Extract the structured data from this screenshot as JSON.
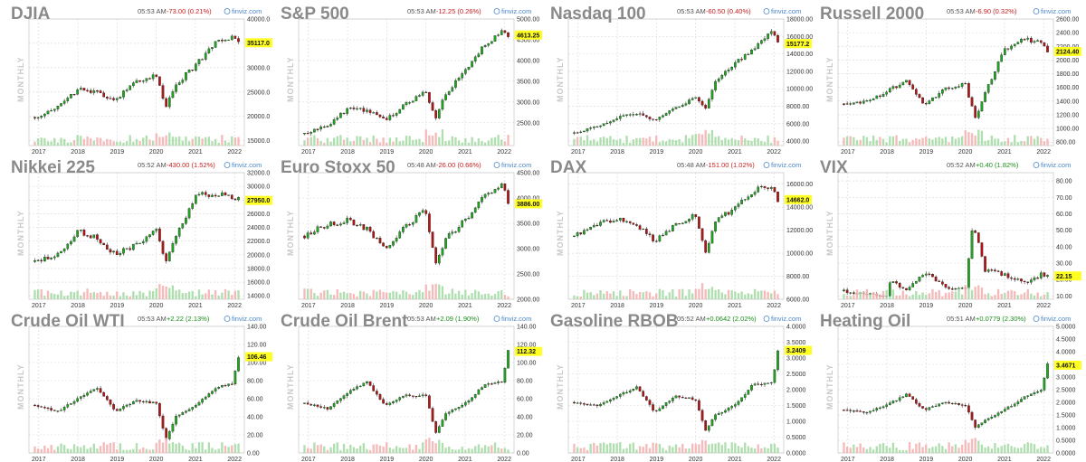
{
  "colors": {
    "up": "#1fa51f",
    "down": "#b31515",
    "vol_up": "#a6dba6",
    "vol_down": "#f4b3b3",
    "highlight": "#ffff22",
    "grid": "#d9d9d9"
  },
  "period_label": "MONTHLY",
  "brand": "finviz.com",
  "brand_icon": "finviz-logo-icon",
  "x_labels": [
    "2017",
    "2018",
    "2019",
    "2020",
    "2021",
    "2022"
  ],
  "chart_data": [
    {
      "type": "candlestick",
      "ticker": "DJIA",
      "time": "05:53 AM",
      "change": "-73.00 (0.21%)",
      "direction": "down",
      "last": "35117.0",
      "last_value": 35117,
      "ylim": [
        14000,
        40000
      ],
      "y_ticks": [
        "40000.0",
        "35000.0",
        "30000.0",
        "25000.0",
        "20000.0",
        "15000.0"
      ],
      "y_tick_values": [
        40000,
        35000,
        30000,
        25000,
        20000,
        15000
      ],
      "series": [
        {
          "name": "close",
          "x": [
            2016.9,
            2017.5,
            2018.0,
            2018.5,
            2018.95,
            2019.5,
            2020.0,
            2020.25,
            2020.5,
            2021.0,
            2021.5,
            2021.95,
            2022.1
          ],
          "values": [
            19800,
            21800,
            25500,
            24800,
            23500,
            27000,
            28500,
            21900,
            26500,
            30500,
            34800,
            36300,
            35117
          ]
        }
      ]
    },
    {
      "type": "candlestick",
      "ticker": "S&P 500",
      "time": "05:53 AM",
      "change": "-12.25 (0.26%)",
      "direction": "down",
      "last": "4613.25",
      "last_value": 4613,
      "ylim": [
        1950,
        5000
      ],
      "y_ticks": [
        "5000.00",
        "4500.00",
        "4000.00",
        "3500.00",
        "3000.00",
        "2500.00"
      ],
      "y_tick_values": [
        5000,
        4500,
        4000,
        3500,
        3000,
        2500
      ],
      "series": [
        {
          "name": "close",
          "x": [
            2016.9,
            2017.5,
            2018.0,
            2018.5,
            2018.95,
            2019.5,
            2020.0,
            2020.25,
            2020.5,
            2021.0,
            2021.5,
            2021.95,
            2022.1
          ],
          "values": [
            2240,
            2450,
            2820,
            2800,
            2550,
            2950,
            3250,
            2600,
            3200,
            3750,
            4350,
            4770,
            4613
          ]
        }
      ]
    },
    {
      "type": "candlestick",
      "ticker": "Nasdaq 100",
      "time": "05:53 AM",
      "change": "-60.50 (0.40%)",
      "direction": "down",
      "last": "15177.2",
      "last_value": 15177,
      "ylim": [
        3500,
        18000
      ],
      "y_ticks": [
        "18000.00",
        "16000.00",
        "14000.00",
        "12000.00",
        "10000.00",
        "8000.00",
        "6000.00",
        "4000.00"
      ],
      "y_tick_values": [
        18000,
        16000,
        14000,
        12000,
        10000,
        8000,
        6000,
        4000
      ],
      "series": [
        {
          "name": "close",
          "x": [
            2016.9,
            2017.5,
            2018.0,
            2018.5,
            2018.95,
            2019.5,
            2020.0,
            2020.25,
            2020.5,
            2021.0,
            2021.5,
            2021.95,
            2022.1
          ],
          "values": [
            4900,
            5700,
            6700,
            7200,
            6400,
            7800,
            9000,
            7700,
            11000,
            12900,
            14800,
            16400,
            15177
          ]
        }
      ]
    },
    {
      "type": "candlestick",
      "ticker": "Russell 2000",
      "time": "05:53 AM",
      "change": "-6.90 (0.32%)",
      "direction": "down",
      "last": "2124.40",
      "last_value": 2124,
      "ylim": [
        750,
        2600
      ],
      "y_ticks": [
        "2600.00",
        "2400.00",
        "2200.00",
        "2000.00",
        "1800.00",
        "1600.00",
        "1400.00",
        "1200.00",
        "1000.00",
        "800.00"
      ],
      "y_tick_values": [
        2600,
        2400,
        2200,
        2000,
        1800,
        1600,
        1400,
        1200,
        1000,
        800
      ],
      "series": [
        {
          "name": "close",
          "x": [
            2016.9,
            2017.5,
            2018.0,
            2018.5,
            2018.95,
            2019.5,
            2020.0,
            2020.25,
            2020.5,
            2021.0,
            2021.5,
            2021.95,
            2022.1
          ],
          "values": [
            1360,
            1400,
            1540,
            1700,
            1350,
            1580,
            1650,
            1150,
            1500,
            2150,
            2300,
            2250,
            2124
          ]
        }
      ]
    },
    {
      "type": "candlestick",
      "ticker": "Nikkei 225",
      "time": "05:52 AM",
      "change": "-430.00 (1.52%)",
      "direction": "down",
      "last": "27950.0",
      "last_value": 27950,
      "ylim": [
        13500,
        32000
      ],
      "y_ticks": [
        "32000.0",
        "30000.0",
        "28000.0",
        "26000.0",
        "24000.0",
        "22000.0",
        "20000.0",
        "18000.0",
        "16000.0",
        "14000.0"
      ],
      "y_tick_values": [
        32000,
        30000,
        28000,
        26000,
        24000,
        22000,
        20000,
        18000,
        16000,
        14000
      ],
      "series": [
        {
          "name": "close",
          "x": [
            2016.9,
            2017.5,
            2018.0,
            2018.5,
            2018.95,
            2019.5,
            2020.0,
            2020.25,
            2020.5,
            2021.0,
            2021.5,
            2021.95,
            2022.1
          ],
          "values": [
            19000,
            20000,
            23500,
            22500,
            20000,
            21500,
            23500,
            19000,
            22500,
            28500,
            29000,
            28500,
            27950
          ]
        }
      ]
    },
    {
      "type": "candlestick",
      "ticker": "Euro Stoxx 50",
      "time": "05:48 AM",
      "change": "-26.00 (0.66%)",
      "direction": "down",
      "last": "3886.00",
      "last_value": 3886,
      "ylim": [
        2000,
        4500
      ],
      "y_ticks": [
        "4500.00",
        "4000.00",
        "3500.00",
        "3000.00",
        "2500.00",
        "2000.00"
      ],
      "y_tick_values": [
        4500,
        4000,
        3500,
        3000,
        2500,
        2000
      ],
      "series": [
        {
          "name": "close",
          "x": [
            2016.9,
            2017.5,
            2018.0,
            2018.5,
            2018.95,
            2019.5,
            2020.0,
            2020.25,
            2020.5,
            2021.0,
            2021.5,
            2021.95,
            2022.1
          ],
          "values": [
            3250,
            3500,
            3550,
            3400,
            3000,
            3450,
            3750,
            2700,
            3200,
            3550,
            4050,
            4250,
            3886
          ]
        }
      ]
    },
    {
      "type": "candlestick",
      "ticker": "DAX",
      "time": "05:48 AM",
      "change": "-151.00 (1.02%)",
      "direction": "down",
      "last": "14662.0",
      "last_value": 14662,
      "ylim": [
        6000,
        17000
      ],
      "y_ticks": [
        "16000.00",
        "14000.00",
        "12000.00",
        "10000.00",
        "8000.00",
        "6000.00"
      ],
      "y_tick_values": [
        16000,
        14000,
        12000,
        10000,
        8000,
        6000
      ],
      "series": [
        {
          "name": "close",
          "x": [
            2016.9,
            2017.5,
            2018.0,
            2018.5,
            2018.95,
            2019.5,
            2020.0,
            2020.25,
            2020.5,
            2021.0,
            2021.5,
            2021.95,
            2022.1
          ],
          "values": [
            11500,
            12500,
            13000,
            12500,
            11000,
            12500,
            13300,
            10000,
            12800,
            13900,
            15500,
            15800,
            14662
          ]
        }
      ]
    },
    {
      "type": "candlestick",
      "ticker": "VIX",
      "time": "05:52 AM",
      "change": "+0.40 (1.82%)",
      "direction": "up",
      "last": "22.15",
      "last_value": 22.15,
      "ylim": [
        8,
        85
      ],
      "y_ticks": [
        "80.00",
        "70.00",
        "60.00",
        "50.00",
        "40.00",
        "30.00",
        "20.00",
        "10.00"
      ],
      "y_tick_values": [
        80,
        70,
        60,
        50,
        40,
        30,
        20,
        10
      ],
      "series": [
        {
          "name": "close",
          "x": [
            2016.9,
            2017.5,
            2018.0,
            2018.1,
            2018.5,
            2018.95,
            2019.5,
            2020.0,
            2020.2,
            2020.5,
            2021.0,
            2021.5,
            2021.95,
            2022.1
          ],
          "values": [
            13,
            11,
            10,
            20,
            13,
            25,
            15,
            14,
            53,
            26,
            23,
            18,
            23,
            22.15
          ]
        }
      ]
    },
    {
      "type": "candlestick",
      "ticker": "Crude Oil WTI",
      "time": "05:53 AM",
      "change": "+2.22 (2.13%)",
      "direction": "up",
      "last": "106.46",
      "last_value": 106.46,
      "ylim": [
        0,
        140
      ],
      "y_ticks": [
        "140.00",
        "120.00",
        "100.00",
        "80.00",
        "60.00",
        "40.00",
        "20.00",
        "0.00"
      ],
      "y_tick_values": [
        140,
        120,
        100,
        80,
        60,
        40,
        20,
        0
      ],
      "series": [
        {
          "name": "close",
          "x": [
            2016.9,
            2017.5,
            2018.0,
            2018.5,
            2018.95,
            2019.5,
            2020.0,
            2020.25,
            2020.5,
            2021.0,
            2021.5,
            2021.95,
            2022.1
          ],
          "values": [
            53,
            46,
            60,
            72,
            46,
            58,
            55,
            15,
            40,
            52,
            72,
            76,
            106.46
          ]
        }
      ]
    },
    {
      "type": "candlestick",
      "ticker": "Crude Oil Brent",
      "time": "05:53 AM",
      "change": "+2.09 (1.90%)",
      "direction": "up",
      "last": "112.32",
      "last_value": 112.32,
      "ylim": [
        0,
        140
      ],
      "y_ticks": [
        "140.00",
        "120.00",
        "100.00",
        "80.00",
        "60.00",
        "40.00",
        "20.00",
        "0.00"
      ],
      "y_tick_values": [
        140,
        120,
        100,
        80,
        60,
        40,
        20,
        0
      ],
      "series": [
        {
          "name": "close",
          "x": [
            2016.9,
            2017.5,
            2018.0,
            2018.5,
            2018.95,
            2019.5,
            2020.0,
            2020.25,
            2020.5,
            2021.0,
            2021.5,
            2021.95,
            2022.1
          ],
          "values": [
            55,
            49,
            67,
            78,
            53,
            64,
            63,
            22,
            43,
            55,
            75,
            79,
            112.32
          ]
        }
      ]
    },
    {
      "type": "candlestick",
      "ticker": "Gasoline RBOB",
      "time": "05:52 AM",
      "change": "+0.0642 (2.02%)",
      "direction": "up",
      "last": "3.2409",
      "last_value": 3.2409,
      "ylim": [
        0,
        4
      ],
      "y_ticks": [
        "4.0000",
        "3.5000",
        "3.0000",
        "2.5000",
        "2.0000",
        "1.5000",
        "1.0000",
        "0.5000",
        "0.0000"
      ],
      "y_tick_values": [
        4,
        3.5,
        3,
        2.5,
        2,
        1.5,
        1,
        0.5,
        0
      ],
      "series": [
        {
          "name": "close",
          "x": [
            2016.9,
            2017.5,
            2018.0,
            2018.5,
            2018.95,
            2019.5,
            2020.0,
            2020.25,
            2020.5,
            2021.0,
            2021.5,
            2021.95,
            2022.1
          ],
          "values": [
            1.6,
            1.5,
            1.8,
            2.1,
            1.3,
            1.8,
            1.7,
            0.7,
            1.2,
            1.5,
            2.2,
            2.2,
            3.2409
          ]
        }
      ]
    },
    {
      "type": "candlestick",
      "ticker": "Heating Oil",
      "time": "05:51 AM",
      "change": "+0.0779 (2.30%)",
      "direction": "up",
      "last": "3.4671",
      "last_value": 3.4671,
      "ylim": [
        0,
        5
      ],
      "y_ticks": [
        "5.0000",
        "4.5000",
        "4.0000",
        "3.5000",
        "3.0000",
        "2.5000",
        "2.0000",
        "1.5000",
        "1.0000",
        "0.5000",
        "0.0000"
      ],
      "y_tick_values": [
        5,
        4.5,
        4,
        3.5,
        3,
        2.5,
        2,
        1.5,
        1,
        0.5,
        0
      ],
      "series": [
        {
          "name": "close",
          "x": [
            2016.9,
            2017.5,
            2018.0,
            2018.5,
            2018.95,
            2019.5,
            2020.0,
            2020.25,
            2020.5,
            2021.0,
            2021.5,
            2021.95,
            2022.1
          ],
          "values": [
            1.7,
            1.6,
            1.9,
            2.3,
            1.7,
            2.0,
            1.9,
            1.0,
            1.3,
            1.7,
            2.2,
            2.5,
            3.4671
          ]
        }
      ]
    }
  ]
}
